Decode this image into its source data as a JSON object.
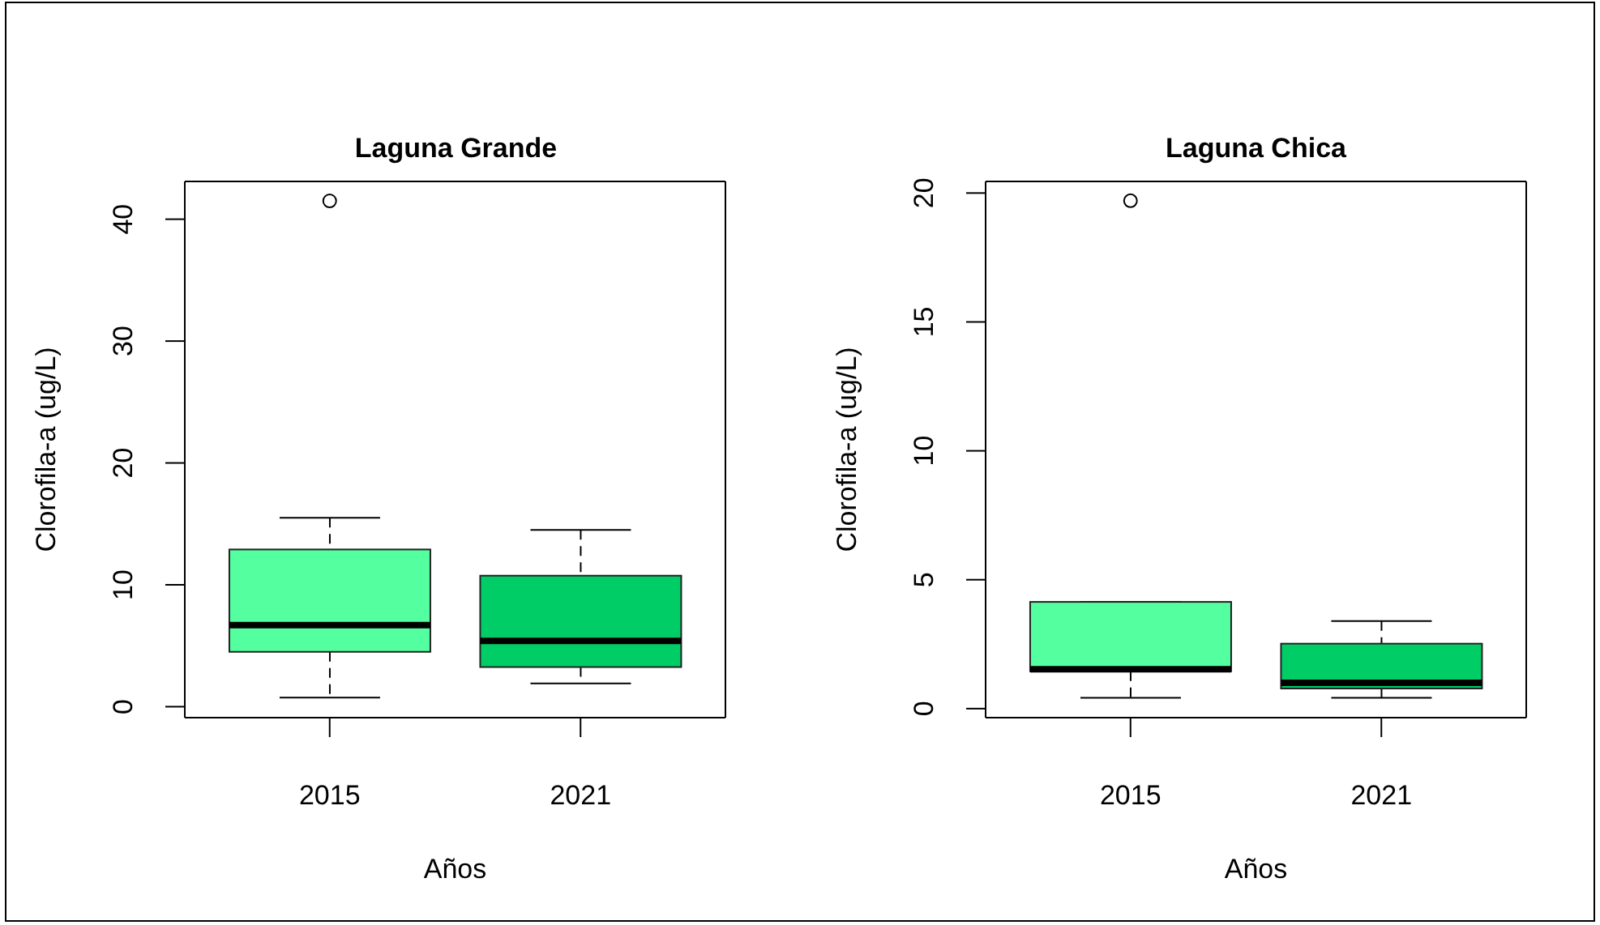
{
  "chart_data": [
    {
      "type": "box",
      "title": "Laguna Grande",
      "xlabel": "Años",
      "ylabel": "Clorofila-a (ug/L)",
      "categories": [
        "2015",
        "2021"
      ],
      "colors": [
        "#54ff9f",
        "#00cd66"
      ],
      "boxes": [
        {
          "low": 0.75,
          "q1": 4.5,
          "median": 6.7,
          "q3": 12.9,
          "high": 15.5,
          "outliers": [
            41.5
          ]
        },
        {
          "low": 1.9,
          "q1": 3.25,
          "median": 5.4,
          "q3": 10.75,
          "high": 14.5
        }
      ],
      "ylim": [
        -0.9,
        43.1
      ],
      "yticks": [
        0,
        10,
        20,
        30,
        40
      ]
    },
    {
      "type": "box",
      "title": "Laguna Chica",
      "xlabel": "Años",
      "ylabel": "Clorofila-a (ug/L)",
      "categories": [
        "2015",
        "2021"
      ],
      "colors": [
        "#54ff9f",
        "#00cd66"
      ],
      "boxes": [
        {
          "low": 0.42,
          "q1": 1.45,
          "median": 1.53,
          "q3": 4.14,
          "high": 4.14,
          "outliers": [
            19.7
          ]
        },
        {
          "low": 0.42,
          "q1": 0.78,
          "median": 1.0,
          "q3": 2.52,
          "high": 3.4
        }
      ],
      "ylim": [
        -0.35,
        20.45
      ],
      "yticks": [
        0,
        5,
        10,
        15,
        20
      ]
    }
  ]
}
